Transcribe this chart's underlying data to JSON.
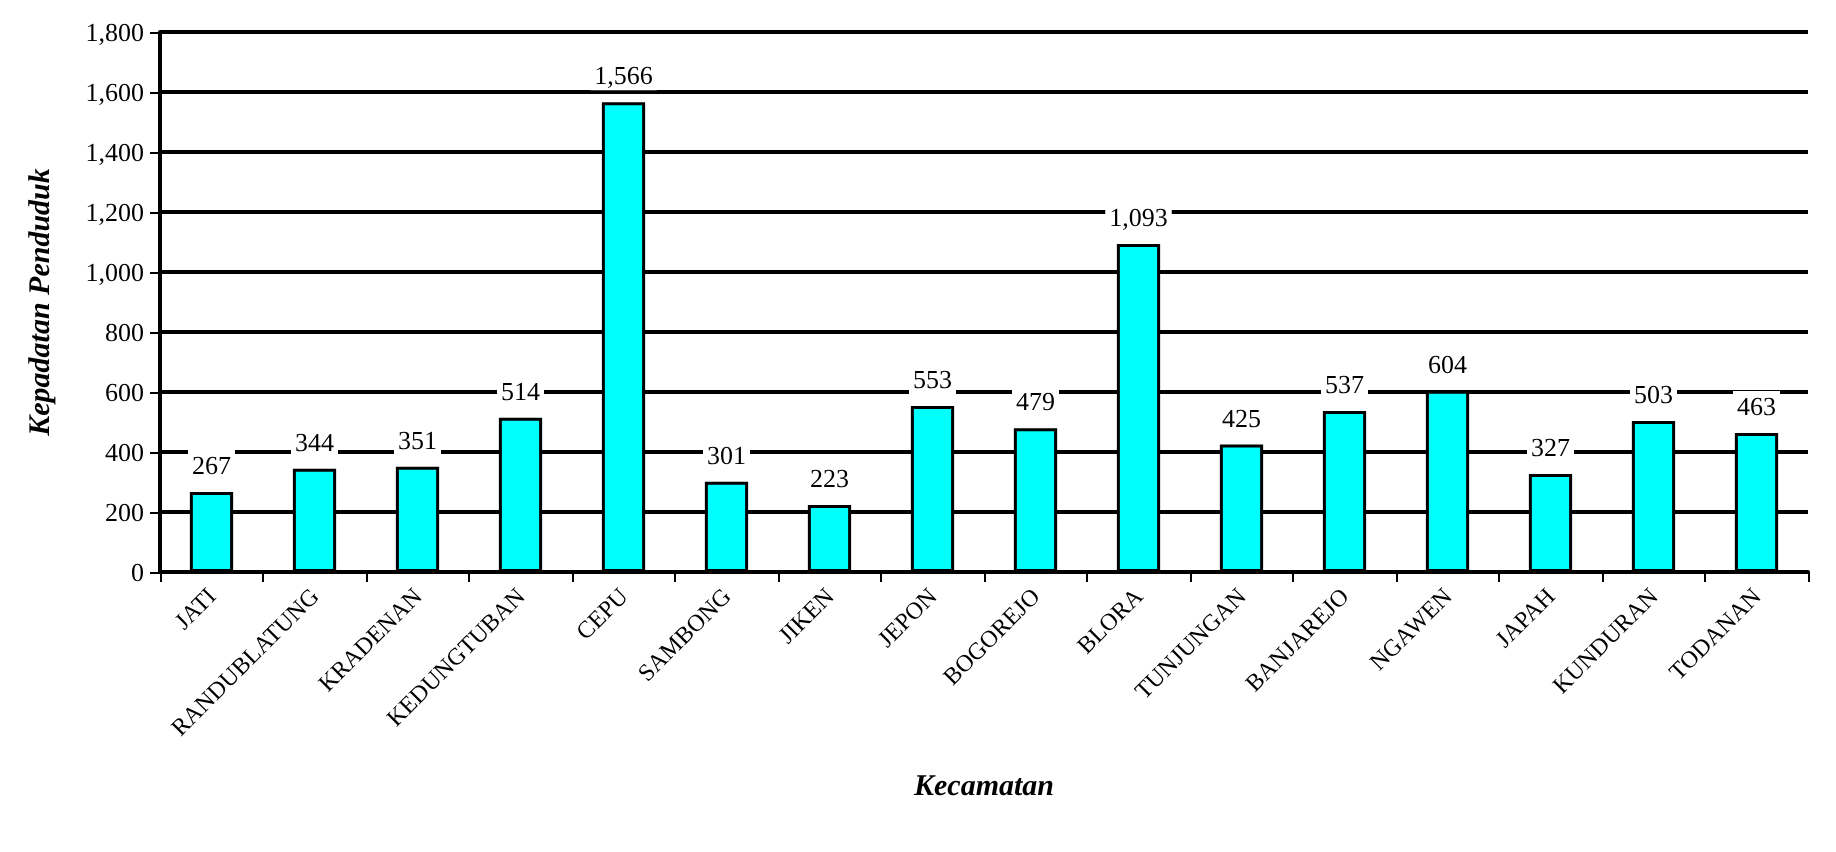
{
  "chart_data": {
    "type": "bar",
    "xlabel": "Kecamatan",
    "ylabel": "Kepadatan Penduduk",
    "categories": [
      "JATI",
      "RANDUBLATUNG",
      "KRADENAN",
      "KEDUNGTUBAN",
      "CEPU",
      "SAMBONG",
      "JIKEN",
      "JEPON",
      "BOGOREJO",
      "BLORA",
      "TUNJUNGAN",
      "BANJAREJO",
      "NGAWEN",
      "JAPAH",
      "KUNDURAN",
      "TODANAN"
    ],
    "values": [
      267,
      344,
      351,
      514,
      1566,
      301,
      223,
      553,
      479,
      1093,
      425,
      537,
      604,
      327,
      503,
      463
    ],
    "color": "#00ffff",
    "ylim": [
      0,
      1800
    ],
    "yticks": [
      0,
      200,
      400,
      600,
      800,
      {
        "value": 1000,
        "label": "1,000"
      },
      {
        "value": 1200,
        "label": "1,200"
      },
      {
        "value": 1400,
        "label": "1,400"
      },
      {
        "value": 1600,
        "label": "1,600"
      },
      {
        "value": 1800,
        "label": "1,800"
      }
    ],
    "value_labels": [
      "267",
      "344",
      "351",
      "514",
      "1,566",
      "301",
      "223",
      "553",
      "479",
      "1,093",
      "425",
      "537",
      "604",
      "327",
      "503",
      "463"
    ],
    "grid": "y"
  }
}
